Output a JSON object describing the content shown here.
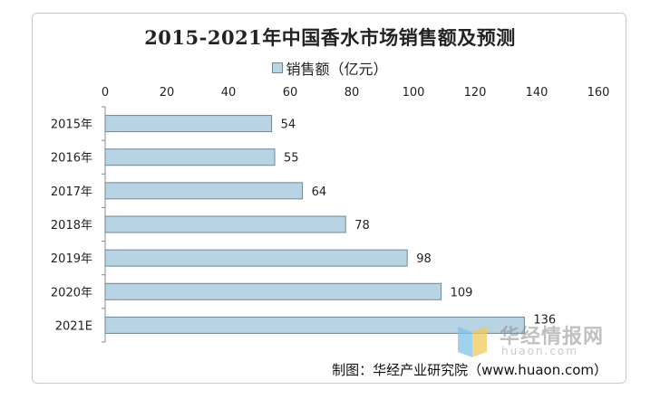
{
  "chart_data": {
    "type": "bar",
    "orientation": "horizontal",
    "title": "2015-2021年中国香水市场销售额及预测",
    "categories": [
      "2015年",
      "2016年",
      "2017年",
      "2018年",
      "2019年",
      "2020年",
      "2021E"
    ],
    "series": [
      {
        "name": "销售额（亿元）",
        "values": [
          54,
          55,
          64,
          78,
          98,
          109,
          136
        ]
      }
    ],
    "xlim": [
      0,
      160
    ],
    "xticks": [
      0,
      20,
      40,
      60,
      80,
      100,
      120,
      140,
      160
    ],
    "axis_position": "top",
    "legend_position": "top",
    "grid": false,
    "data_labels": true,
    "colors": {
      "bar_fill": "#b7d3e4",
      "bar_stroke": "#6f8796"
    }
  },
  "source": "制图：华经产业研究院（www.huaon.com）",
  "watermark": {
    "name": "华经情报网",
    "domain": "huaon.com"
  }
}
